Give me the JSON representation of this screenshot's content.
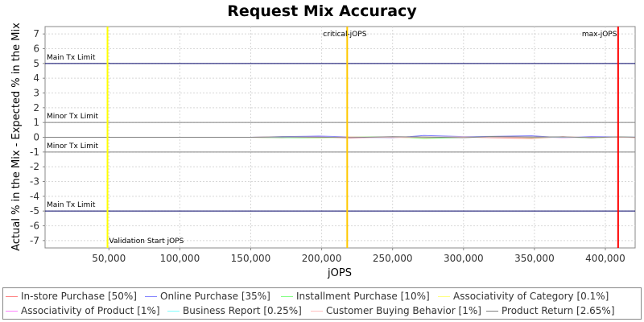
{
  "chart_data": {
    "type": "line",
    "title": "Request Mix Accuracy",
    "xlabel": "jOPS",
    "ylabel": "Actual % in the Mix - Expected % in the Mix",
    "xlim": [
      5000,
      421000
    ],
    "ylim": [
      -7.5,
      7.5
    ],
    "x_ticks": [
      50000,
      100000,
      150000,
      200000,
      250000,
      300000,
      350000,
      400000
    ],
    "x_tick_labels": [
      "50,000",
      "100,000",
      "150,000",
      "200,000",
      "250,000",
      "300,000",
      "350,000",
      "400,000"
    ],
    "y_ticks": [
      -7,
      -6,
      -5,
      -4,
      -3,
      -2,
      -1,
      0,
      1,
      2,
      3,
      4,
      5,
      6,
      7
    ],
    "y_tick_labels": [
      "-7",
      "-6",
      "-5",
      "-4",
      "-3",
      "-2",
      "-1",
      "0",
      "1",
      "2",
      "3",
      "4",
      "5",
      "6",
      "7"
    ],
    "grid": true,
    "legend_position": "bottom",
    "limit_lines": [
      {
        "label": "Main Tx Limit",
        "y": 5,
        "color": "#000066"
      },
      {
        "label": "Minor Tx Limit",
        "y": 1,
        "color": "#808080"
      },
      {
        "label": "Minor Tx Limit",
        "y": -1,
        "color": "#808080"
      },
      {
        "label": "Main Tx Limit",
        "y": -5,
        "color": "#000066"
      }
    ],
    "markers": [
      {
        "label": "Validation Start jOPS",
        "x": 49000,
        "color": "#ffff00",
        "label_pos": "bottom"
      },
      {
        "label": "critical-jOPS",
        "x": 218000,
        "color": "#ffc800",
        "label_pos": "top"
      },
      {
        "label": "max-jOPS",
        "x": 409000,
        "color": "#ff0000",
        "label_pos": "top"
      }
    ],
    "series": [
      {
        "name": "In-store Purchase [50%]",
        "color": "#ff8080",
        "x": [
          5000,
          150000,
          172000,
          198000,
          220000,
          250000,
          272000,
          300000,
          320000,
          348000,
          370000,
          390000,
          409000,
          421000
        ],
        "y": [
          0,
          0,
          -0.04,
          0.03,
          -0.05,
          0.02,
          -0.06,
          0.03,
          -0.04,
          -0.08,
          0.04,
          -0.05,
          0.03,
          -0.02
        ]
      },
      {
        "name": "Online Purchase [35%]",
        "color": "#8080ff",
        "x": [
          5000,
          150000,
          172000,
          198000,
          220000,
          250000,
          272000,
          300000,
          320000,
          348000,
          370000,
          390000,
          409000,
          421000
        ],
        "y": [
          0,
          0,
          0.05,
          0.08,
          0.03,
          -0.04,
          0.12,
          0.05,
          0.06,
          0.1,
          -0.03,
          0.05,
          0.02,
          0.01
        ]
      },
      {
        "name": "Installment Purchase [10%]",
        "color": "#80ff80",
        "x": [
          5000,
          150000,
          172000,
          198000,
          220000,
          250000,
          272000,
          300000,
          320000,
          348000,
          370000,
          390000,
          409000,
          421000
        ],
        "y": [
          0,
          0,
          -0.03,
          -0.05,
          0.02,
          0.03,
          -0.08,
          -0.02,
          0.04,
          -0.03,
          0.02,
          -0.04,
          0.02,
          0
        ]
      },
      {
        "name": "Associativity of Category [0.1%]",
        "color": "#ffff80",
        "x": [
          5000,
          150000,
          172000,
          198000,
          220000,
          250000,
          272000,
          300000,
          320000,
          348000,
          370000,
          390000,
          409000,
          421000
        ],
        "y": [
          0,
          0,
          0.02,
          -0.02,
          0.01,
          0,
          -0.01,
          0.02,
          0,
          -0.01,
          0.01,
          0,
          -0.01,
          0
        ]
      },
      {
        "name": "Associativity of Product [1%]",
        "color": "#ff80ff",
        "x": [
          5000,
          150000,
          172000,
          198000,
          220000,
          250000,
          272000,
          300000,
          320000,
          348000,
          370000,
          390000,
          409000,
          421000
        ],
        "y": [
          0,
          0,
          0.01,
          0.02,
          -0.02,
          0.01,
          0.02,
          -0.01,
          0.01,
          0.02,
          -0.02,
          0.01,
          0,
          0
        ]
      },
      {
        "name": "Business Report [0.25%]",
        "color": "#80ffff",
        "x": [
          5000,
          150000,
          172000,
          198000,
          220000,
          250000,
          272000,
          300000,
          320000,
          348000,
          370000,
          390000,
          409000,
          421000
        ],
        "y": [
          0,
          0,
          -0.01,
          0.01,
          0,
          -0.01,
          0.01,
          0,
          -0.01,
          0.01,
          0,
          -0.01,
          0.01,
          0
        ]
      },
      {
        "name": "Customer Buying Behavior [1%]",
        "color": "#ffc0c0",
        "x": [
          5000,
          150000,
          172000,
          198000,
          220000,
          250000,
          272000,
          300000,
          320000,
          348000,
          370000,
          390000,
          409000,
          421000
        ],
        "y": [
          0,
          0,
          0.02,
          -0.01,
          0.02,
          -0.02,
          0.01,
          0.02,
          -0.02,
          0.01,
          0.02,
          -0.01,
          0,
          0
        ]
      },
      {
        "name": "Product Return [2.65%]",
        "color": "#808080",
        "x": [
          5000,
          150000,
          172000,
          198000,
          220000,
          250000,
          272000,
          300000,
          320000,
          348000,
          370000,
          390000,
          409000,
          421000
        ],
        "y": [
          0,
          0,
          0.03,
          0.01,
          -0.02,
          0.04,
          0.02,
          -0.03,
          0.05,
          0.02,
          0.03,
          -0.02,
          0.03,
          0.01
        ]
      }
    ]
  }
}
